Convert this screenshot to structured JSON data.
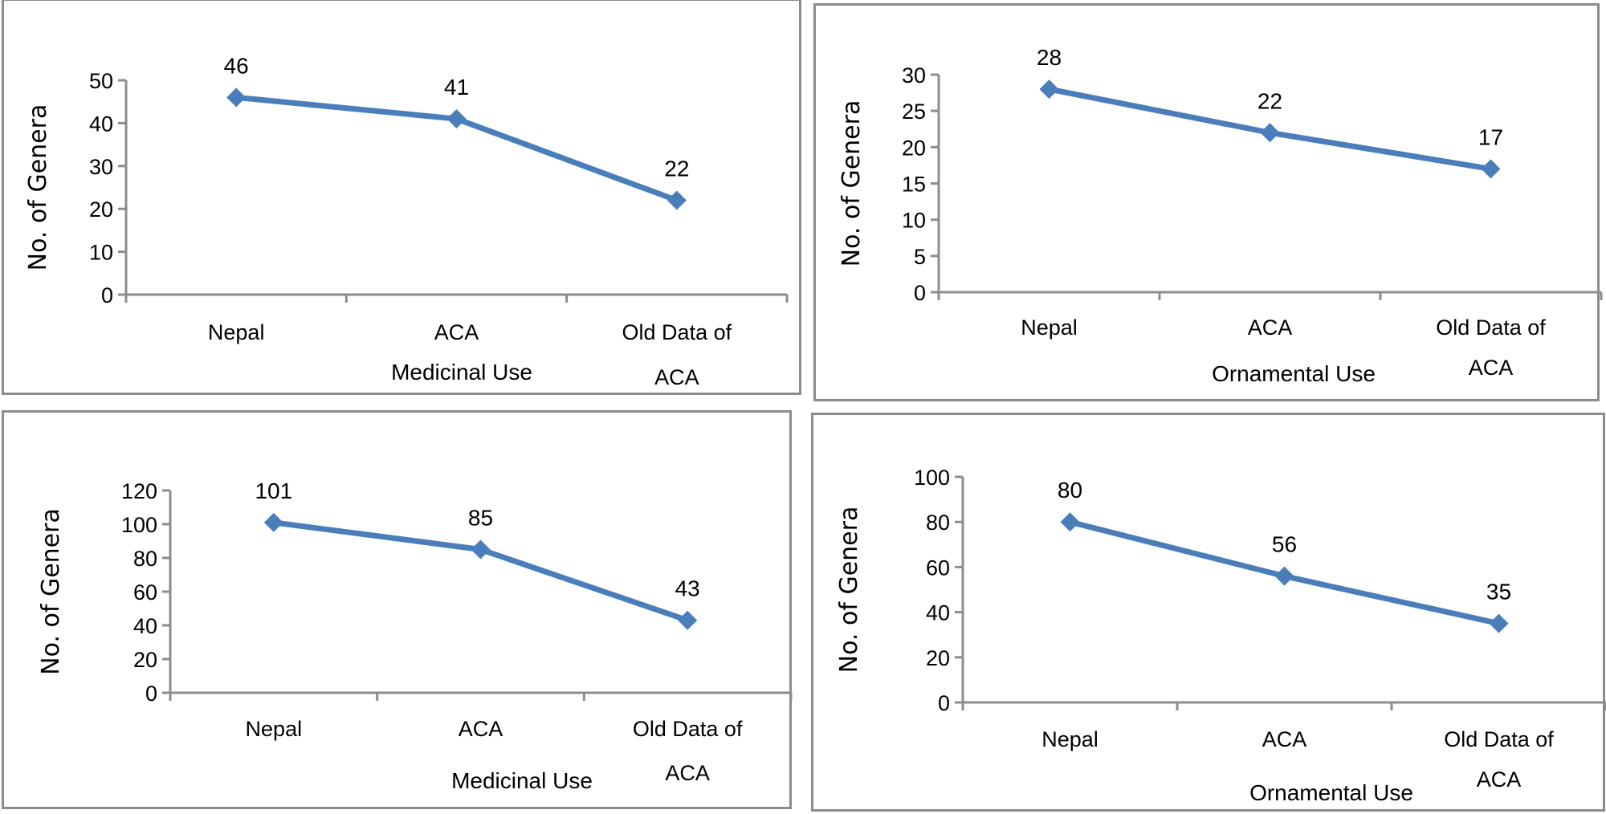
{
  "style": {
    "line_color": "#4a7ebb",
    "axis_color": "#8c8c8c",
    "border_color": "#8c8c8c"
  },
  "chart_data": [
    {
      "type": "line",
      "title": "",
      "xlabel": "Medicinal Use",
      "ylabel": "No. of Genera",
      "categories": [
        "Nepal",
        "ACA",
        "Old Data of ACA"
      ],
      "category_lines": [
        [
          "Nepal"
        ],
        [
          "ACA"
        ],
        [
          "Old Data of",
          "ACA"
        ]
      ],
      "series": [
        {
          "name": "Medicinal Use",
          "values": [
            46,
            41,
            22
          ]
        }
      ],
      "data_labels": [
        "46",
        "41",
        "22"
      ],
      "ylim": [
        0,
        50
      ],
      "yticks": [
        0,
        10,
        20,
        30,
        40,
        50
      ],
      "ytick_labels": [
        "0",
        "10",
        "20",
        "30",
        "40",
        "50"
      ],
      "grid": false,
      "legend": "none",
      "marker": "diamond"
    },
    {
      "type": "line",
      "title": "",
      "xlabel": "Ornamental Use",
      "ylabel": "No. of Genera",
      "categories": [
        "Nepal",
        "ACA",
        "Old Data of ACA"
      ],
      "category_lines": [
        [
          "Nepal"
        ],
        [
          "ACA"
        ],
        [
          "Old Data of",
          "ACA"
        ]
      ],
      "series": [
        {
          "name": "Ornamental Use",
          "values": [
            28,
            22,
            17
          ]
        }
      ],
      "data_labels": [
        "28",
        "22",
        "17"
      ],
      "ylim": [
        0,
        30
      ],
      "yticks": [
        0,
        5,
        10,
        15,
        20,
        25,
        30
      ],
      "ytick_labels": [
        "0",
        "5",
        "10",
        "15",
        "20",
        "25",
        "30"
      ],
      "grid": false,
      "legend": "none",
      "marker": "diamond"
    },
    {
      "type": "line",
      "title": "",
      "xlabel": "Medicinal Use",
      "ylabel": "No. of Genera",
      "categories": [
        "Nepal",
        "ACA",
        "Old Data of ACA"
      ],
      "category_lines": [
        [
          "Nepal"
        ],
        [
          "ACA"
        ],
        [
          "Old Data of",
          "ACA"
        ]
      ],
      "series": [
        {
          "name": "Medicinal Use",
          "values": [
            101,
            85,
            43
          ]
        }
      ],
      "data_labels": [
        "101",
        "85",
        "43"
      ],
      "ylim": [
        0,
        120
      ],
      "yticks": [
        0,
        20,
        40,
        60,
        80,
        100,
        120
      ],
      "ytick_labels": [
        "0",
        "20",
        "40",
        "60",
        "80",
        "100",
        "120"
      ],
      "grid": false,
      "legend": "none",
      "marker": "diamond"
    },
    {
      "type": "line",
      "title": "",
      "xlabel": "Ornamental Use",
      "ylabel": "No. of Genera",
      "categories": [
        "Nepal",
        "ACA",
        "Old Data of ACA"
      ],
      "category_lines": [
        [
          "Nepal"
        ],
        [
          "ACA"
        ],
        [
          "Old Data of",
          "ACA"
        ]
      ],
      "series": [
        {
          "name": "Ornamental Use",
          "values": [
            80,
            56,
            35
          ]
        }
      ],
      "data_labels": [
        "80",
        "56",
        "35"
      ],
      "ylim": [
        0,
        100
      ],
      "yticks": [
        0,
        20,
        40,
        60,
        80,
        100
      ],
      "ytick_labels": [
        "0",
        "20",
        "40",
        "60",
        "80",
        "100"
      ],
      "grid": false,
      "legend": "none",
      "marker": "diamond"
    }
  ]
}
